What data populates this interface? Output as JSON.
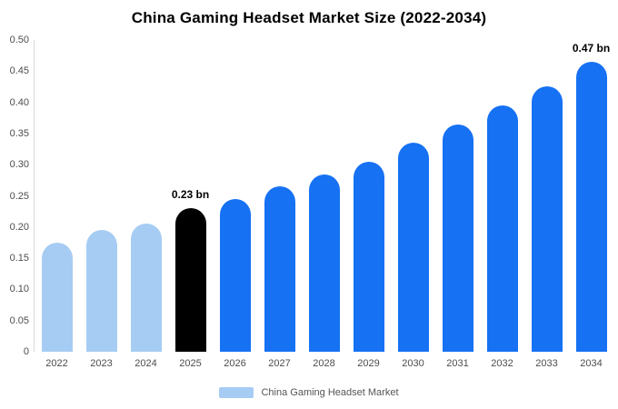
{
  "chart_data": {
    "type": "bar",
    "title": "China Gaming Headset Market Size (2022-2034)",
    "categories": [
      "2022",
      "2023",
      "2024",
      "2025",
      "2026",
      "2027",
      "2028",
      "2029",
      "2030",
      "2031",
      "2032",
      "2033",
      "2034"
    ],
    "values": [
      0.175,
      0.195,
      0.205,
      0.23,
      0.245,
      0.265,
      0.285,
      0.305,
      0.335,
      0.365,
      0.395,
      0.425,
      0.465
    ],
    "ylim": [
      0,
      0.5
    ],
    "yticks": [
      "0.50",
      "0.45",
      "0.40",
      "0.35",
      "0.30",
      "0.25",
      "0.20",
      "0.15",
      "0.10",
      "0.05",
      "0"
    ],
    "grid": false,
    "colors": {
      "light": "#a6ccf3",
      "highlight": "#000000",
      "primary": "#1671f3"
    },
    "color_map": [
      "light",
      "light",
      "light",
      "highlight",
      "primary",
      "primary",
      "primary",
      "primary",
      "primary",
      "primary",
      "primary",
      "primary",
      "primary"
    ],
    "annotations": [
      {
        "index": 3,
        "text": "0.23 bn"
      },
      {
        "index": 12,
        "text": "0.47 bn"
      }
    ],
    "legend": {
      "label": "China Gaming Headset Market",
      "color": "#a6ccf3",
      "position": "bottom"
    }
  }
}
